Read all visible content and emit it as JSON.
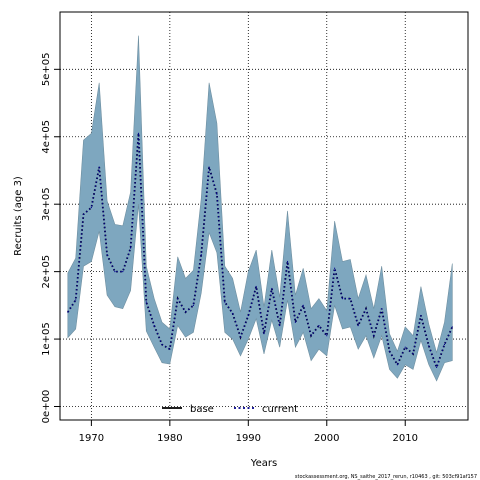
{
  "chart_data": {
    "type": "line",
    "title": "",
    "xlabel": "Years",
    "ylabel": "Recruits (age 3)",
    "xlim": [
      1966,
      2018
    ],
    "ylim": [
      -20000,
      585000
    ],
    "grid": true,
    "x_ticks": [
      1970,
      1980,
      1990,
      2000,
      2010
    ],
    "x_tick_labels": [
      "1970",
      "1980",
      "1990",
      "2000",
      "2010"
    ],
    "y_ticks": [
      0,
      100000,
      200000,
      300000,
      400000,
      500000
    ],
    "y_tick_labels": [
      "0e+00",
      "1e+05",
      "2e+05",
      "3e+05",
      "4e+05",
      "5e+05"
    ],
    "legend": {
      "placement": "bottom-center",
      "entries": [
        {
          "label": "base",
          "style": "solid",
          "color": "#000000"
        },
        {
          "label": "current",
          "style": "dotted",
          "color": "#00008b"
        }
      ]
    },
    "band_color": "#7ea7bf",
    "band_edge_color": "#6f8fa0",
    "series": [
      {
        "name": "current",
        "x": [
          1967,
          1968,
          1969,
          1970,
          1971,
          1972,
          1973,
          1974,
          1975,
          1976,
          1977,
          1978,
          1979,
          1980,
          1981,
          1982,
          1983,
          1984,
          1985,
          1986,
          1987,
          1988,
          1989,
          1990,
          1991,
          1992,
          1993,
          1994,
          1995,
          1996,
          1997,
          1998,
          1999,
          2000,
          2001,
          2002,
          2003,
          2004,
          2005,
          2006,
          2007,
          2008,
          2009,
          2010,
          2011,
          2012,
          2013,
          2014,
          2015,
          2016
        ],
        "y": [
          140000,
          158000,
          285000,
          295000,
          355000,
          225000,
          200000,
          200000,
          235000,
          405000,
          155000,
          120000,
          92000,
          85000,
          160000,
          140000,
          150000,
          225000,
          355000,
          315000,
          155000,
          138000,
          103000,
          135000,
          178000,
          108000,
          175000,
          120000,
          215000,
          125000,
          150000,
          105000,
          120000,
          105000,
          205000,
          160000,
          160000,
          120000,
          145000,
          105000,
          145000,
          82000,
          62000,
          88000,
          78000,
          135000,
          90000,
          58000,
          92000,
          118000
        ],
        "lower": [
          102000,
          115000,
          208000,
          215000,
          260000,
          165000,
          148000,
          145000,
          172000,
          300000,
          112000,
          88000,
          65000,
          63000,
          120000,
          103000,
          110000,
          168000,
          258000,
          228000,
          110000,
          100000,
          75000,
          100000,
          130000,
          78000,
          128000,
          88000,
          158000,
          88000,
          110000,
          68000,
          85000,
          75000,
          150000,
          115000,
          118000,
          85000,
          105000,
          72000,
          105000,
          55000,
          42000,
          62000,
          55000,
          98000,
          62000,
          38000,
          65000,
          68000
        ],
        "upper": [
          198000,
          220000,
          395000,
          405000,
          480000,
          305000,
          270000,
          268000,
          318000,
          550000,
          208000,
          160000,
          125000,
          115000,
          222000,
          190000,
          202000,
          308000,
          480000,
          420000,
          208000,
          190000,
          140000,
          200000,
          232000,
          148000,
          232000,
          162000,
          290000,
          165000,
          205000,
          145000,
          160000,
          142000,
          275000,
          215000,
          218000,
          160000,
          195000,
          145000,
          208000,
          108000,
          82000,
          118000,
          105000,
          178000,
          122000,
          80000,
          125000,
          212000
        ]
      }
    ]
  },
  "footer": {
    "text": "stockassessment.org, NS_saithe_2017_rerun, r10463 , git: 503cf91af157"
  }
}
